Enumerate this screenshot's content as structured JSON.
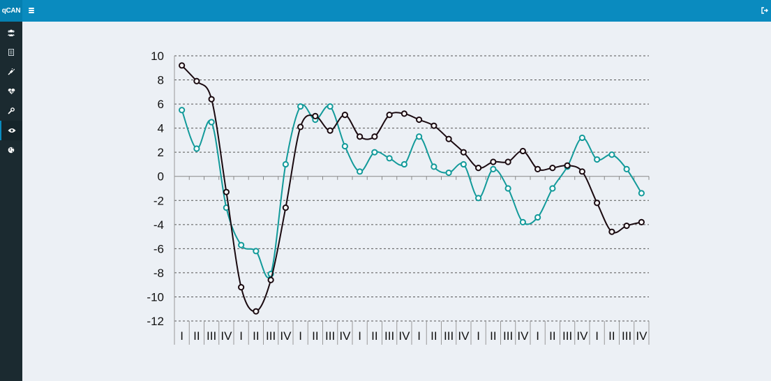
{
  "app": {
    "logo_text": "qCAN"
  },
  "header": {
    "menu_icon": "hamburger-icon",
    "logout_icon": "sign-out-icon"
  },
  "sidebar": {
    "items": [
      {
        "icon": "users-icon",
        "active": false
      },
      {
        "icon": "document-icon",
        "active": false
      },
      {
        "icon": "plug-icon",
        "active": false
      },
      {
        "icon": "heartbeat-icon",
        "active": false
      },
      {
        "icon": "wrench-icon",
        "active": false
      },
      {
        "icon": "eye-icon",
        "active": true
      },
      {
        "icon": "globe-icon",
        "active": false
      }
    ]
  },
  "colors": {
    "topbar": "#0a8bbf",
    "sidebar": "#1b2a30",
    "series_black": "#1a0a10",
    "series_teal": "#129a9a"
  },
  "chart_data": {
    "type": "line",
    "title": "",
    "xlabel": "",
    "ylabel": "",
    "ylim": [
      -12,
      10
    ],
    "yticks": [
      10,
      8,
      6,
      4,
      2,
      0,
      -2,
      -4,
      -6,
      -8,
      -10,
      -12
    ],
    "grid": "horizontal-dashed",
    "legend": "none",
    "categories": [
      "I",
      "II",
      "III",
      "IV",
      "I",
      "II",
      "III",
      "IV",
      "I",
      "II",
      "III",
      "IV",
      "I",
      "II",
      "III",
      "IV",
      "I",
      "II",
      "III",
      "IV",
      "I",
      "II",
      "III",
      "IV",
      "I",
      "II",
      "III",
      "IV",
      "I",
      "II",
      "III",
      "IV"
    ],
    "series": [
      {
        "color": "#1a0a10",
        "values": [
          9.2,
          7.9,
          6.4,
          -1.3,
          -9.2,
          -11.2,
          -8.6,
          -2.6,
          4.1,
          5.0,
          3.8,
          5.1,
          3.3,
          3.3,
          5.1,
          5.2,
          4.7,
          4.2,
          3.1,
          2.0,
          0.7,
          1.2,
          1.2,
          2.1,
          0.6,
          0.7,
          0.9,
          0.4,
          -2.2,
          -4.6,
          -4.1,
          -3.8
        ]
      },
      {
        "color": "#129a9a",
        "values": [
          5.5,
          2.3,
          4.5,
          -2.6,
          -5.7,
          -6.2,
          -8.1,
          1.0,
          5.8,
          4.7,
          5.8,
          2.5,
          0.4,
          2.0,
          1.5,
          1.0,
          3.3,
          0.8,
          0.3,
          1.0,
          -1.8,
          0.6,
          -1.0,
          -3.8,
          -3.4,
          -1.0,
          0.8,
          3.2,
          1.4,
          1.8,
          0.6,
          -1.4
        ]
      }
    ]
  }
}
